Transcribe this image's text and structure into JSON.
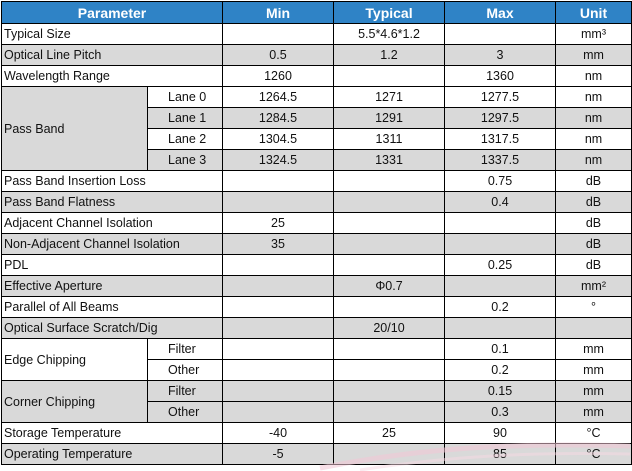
{
  "headers": {
    "parameter": "Parameter",
    "min": "Min",
    "typical": "Typical",
    "max": "Max",
    "unit": "Unit"
  },
  "rows": {
    "typical_size": {
      "param": "Typical Size",
      "min": "",
      "typ": "5.5*4.6*1.2",
      "max": "",
      "unit": "mm³"
    },
    "optical_line_pitch": {
      "param": "Optical Line Pitch",
      "min": "0.5",
      "typ": "1.2",
      "max": "3",
      "unit": "mm"
    },
    "wavelength_range": {
      "param": "Wavelength Range",
      "min": "1260",
      "typ": "",
      "max": "1360",
      "unit": "nm"
    },
    "pass_band": {
      "param": "Pass Band",
      "lanes": [
        {
          "label": "Lane 0",
          "min": "1264.5",
          "typ": "1271",
          "max": "1277.5",
          "unit": "nm"
        },
        {
          "label": "Lane 1",
          "min": "1284.5",
          "typ": "1291",
          "max": "1297.5",
          "unit": "nm"
        },
        {
          "label": "Lane 2",
          "min": "1304.5",
          "typ": "1311",
          "max": "1317.5",
          "unit": "nm"
        },
        {
          "label": "Lane 3",
          "min": "1324.5",
          "typ": "1331",
          "max": "1337.5",
          "unit": "nm"
        }
      ]
    },
    "pass_band_il": {
      "param": "Pass Band Insertion Loss",
      "min": "",
      "typ": "",
      "max": "0.75",
      "unit": "dB"
    },
    "pass_band_flatness": {
      "param": "Pass Band Flatness",
      "min": "",
      "typ": "",
      "max": "0.4",
      "unit": "dB"
    },
    "adjacent_iso": {
      "param": "Adjacent Channel Isolation",
      "min": "25",
      "typ": "",
      "max": "",
      "unit": "dB"
    },
    "non_adjacent_iso": {
      "param": "Non-Adjacent Channel Isolation",
      "min": "35",
      "typ": "",
      "max": "",
      "unit": "dB"
    },
    "pdl": {
      "param": "PDL",
      "min": "",
      "typ": "",
      "max": "0.25",
      "unit": "dB"
    },
    "effective_aperture": {
      "param": "Effective Aperture",
      "min": "",
      "typ": "Φ0.7",
      "max": "",
      "unit": "mm²"
    },
    "parallel_beams": {
      "param": "Parallel of All Beams",
      "min": "",
      "typ": "",
      "max": "0.2",
      "unit": "°"
    },
    "scratch_dig": {
      "param": "Optical Surface Scratch/Dig",
      "min": "",
      "typ": "20/10",
      "max": "",
      "unit": ""
    },
    "edge_chipping": {
      "param": "Edge Chipping",
      "subs": [
        {
          "label": "Filter",
          "min": "",
          "typ": "",
          "max": "0.1",
          "unit": "mm"
        },
        {
          "label": "Other",
          "min": "",
          "typ": "",
          "max": "0.2",
          "unit": "mm"
        }
      ]
    },
    "corner_chipping": {
      "param": "Corner Chipping",
      "subs": [
        {
          "label": "Filter",
          "min": "",
          "typ": "",
          "max": "0.15",
          "unit": "mm"
        },
        {
          "label": "Other",
          "min": "",
          "typ": "",
          "max": "0.3",
          "unit": "mm"
        }
      ]
    },
    "storage_temp": {
      "param": "Storage Temperature",
      "min": "-40",
      "typ": "25",
      "max": "90",
      "unit": "°C"
    },
    "operating_temp": {
      "param": "Operating Temperature",
      "min": "-5",
      "typ": "",
      "max": "85",
      "unit": "°C"
    }
  },
  "colors": {
    "header_bg": "#2f83c6",
    "header_text": "#ffffff",
    "shade_row": "#d9d9d9",
    "white_row": "#ffffff",
    "grid": "#000000"
  }
}
